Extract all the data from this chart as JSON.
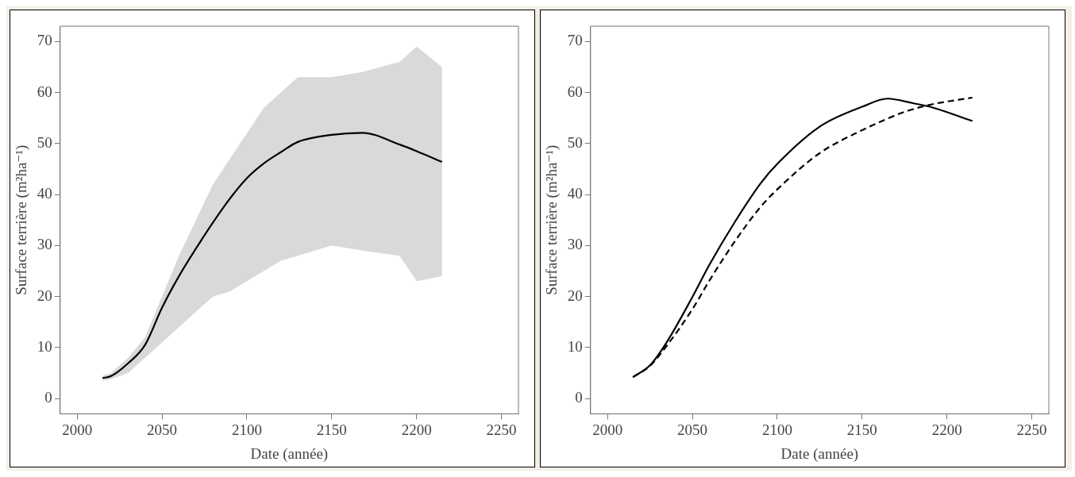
{
  "chart_data": [
    {
      "type": "line",
      "xlabel": "Date (année)",
      "ylabel": "Surface terrière (m²ha⁻¹)",
      "xlim": [
        1990,
        2260
      ],
      "ylim": [
        -3,
        73
      ],
      "xticks": [
        2000,
        2050,
        2100,
        2150,
        2200,
        2250
      ],
      "yticks": [
        0,
        10,
        20,
        30,
        40,
        50,
        60,
        70
      ],
      "grid": false,
      "legend": false,
      "marker": "none",
      "series": [
        {
          "color": "#000000",
          "line_style": "solid",
          "x": [
            2015,
            2020,
            2030,
            2040,
            2050,
            2060,
            2070,
            2080,
            2090,
            2100,
            2110,
            2120,
            2130,
            2150,
            2168,
            2190,
            2200,
            2215
          ],
          "values": [
            4,
            4.4,
            6.9,
            10.5,
            17.8,
            24,
            29.4,
            34.5,
            39.2,
            43.2,
            46.1,
            48.3,
            50.3,
            51.7,
            52.1,
            49.8,
            48.5,
            46.4
          ],
          "lower": [
            3.5,
            3.8,
            5,
            8,
            11,
            14,
            17,
            20,
            21,
            23,
            25,
            27,
            28,
            30,
            29,
            28,
            23,
            24
          ],
          "upper": [
            4.5,
            5,
            8,
            12,
            20,
            28,
            35,
            42,
            47,
            52,
            57,
            60,
            63,
            63,
            64,
            66,
            69,
            65
          ]
        }
      ]
    },
    {
      "type": "line",
      "xlabel": "Date (année)",
      "ylabel": "Surface terrière (m²ha⁻¹)",
      "xlim": [
        1990,
        2260
      ],
      "ylim": [
        -3,
        73
      ],
      "xticks": [
        2000,
        2050,
        2100,
        2150,
        2200,
        2250
      ],
      "yticks": [
        0,
        10,
        20,
        30,
        40,
        50,
        60,
        70
      ],
      "grid": false,
      "legend": false,
      "marker": "none",
      "series": [
        {
          "color": "#000000",
          "line_style": "solid",
          "x": [
            2015,
            2025,
            2035,
            2050,
            2060,
            2075,
            2090,
            2100,
            2125,
            2150,
            2165,
            2180,
            2190,
            2215
          ],
          "values": [
            4.2,
            6.5,
            11.1,
            19.9,
            26.2,
            34.6,
            42.1,
            46,
            53.3,
            57.2,
            58.8,
            57.9,
            57.2,
            54.4
          ]
        },
        {
          "color": "#000000",
          "line_style": "dashed",
          "x": [
            2015,
            2025,
            2035,
            2050,
            2060,
            2075,
            2090,
            2100,
            2125,
            2150,
            2175,
            2190,
            2215
          ],
          "values": [
            4.2,
            6.4,
            10.4,
            17.5,
            23.1,
            30.8,
            37.5,
            41,
            48.1,
            52.6,
            56.2,
            57.6,
            59
          ]
        }
      ]
    }
  ]
}
